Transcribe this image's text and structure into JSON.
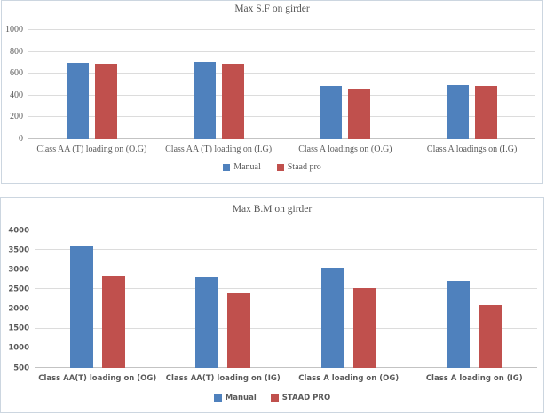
{
  "page": {
    "background": "#ffffff"
  },
  "colors": {
    "series_blue": "#4F81BD",
    "series_red": "#C0504D",
    "gridline": "#dcdcdc",
    "axis_line": "#c3c3c3",
    "text": "#595959",
    "chart_border": "#ccd6e0"
  },
  "chart_data": [
    {
      "type": "bar",
      "title": "Max S.F on girder",
      "categories": [
        "Class AA (T) loading on (O.G)",
        "Class AA (T) loading on (I.G)",
        "Class A loadings on (O.G)",
        "Class A loadings on (I.G)"
      ],
      "series": [
        {
          "name": "Manual",
          "color": "#4F81BD",
          "values": [
            700,
            705,
            485,
            500
          ]
        },
        {
          "name": "Staad pro",
          "color": "#C0504D",
          "values": [
            688,
            692,
            460,
            485
          ]
        }
      ],
      "xlabel": "",
      "ylabel": "",
      "ylim": [
        0,
        1000
      ],
      "yticks": [
        0,
        200,
        400,
        600,
        800,
        1000
      ],
      "grid": true,
      "legend_position": "bottom"
    },
    {
      "type": "bar",
      "title": "Max B.M on girder",
      "categories": [
        "Class AA(T) loading on (OG)",
        "Class AA(T) loading on (IG)",
        "Class A loading on (OG)",
        "Class A loading on (IG)"
      ],
      "series": [
        {
          "name": "Manual",
          "color": "#4F81BD",
          "values": [
            3590,
            2830,
            3060,
            2720
          ]
        },
        {
          "name": "STAAD PRO",
          "color": "#C0504D",
          "values": [
            2860,
            2390,
            2540,
            2100
          ]
        }
      ],
      "xlabel": "",
      "ylabel": "",
      "ylim": [
        500,
        4000
      ],
      "yticks": [
        500,
        1000,
        1500,
        2000,
        2500,
        3000,
        3500,
        4000
      ],
      "grid": true,
      "legend_position": "bottom"
    }
  ]
}
